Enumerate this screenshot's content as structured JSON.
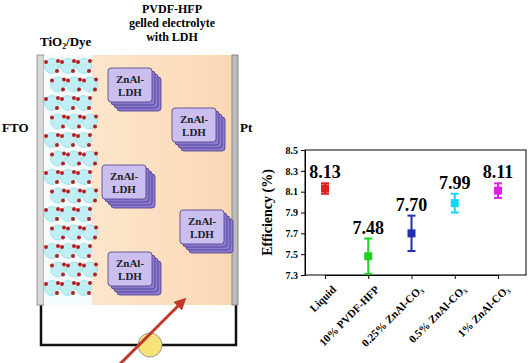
{
  "chart_data": {
    "type": "scatter",
    "categories": [
      "Liquid",
      "10% PVDF-HFP",
      "0.25% ZnAl-CO₃",
      "0.5% ZnAl-CO₃",
      "1% ZnAl-CO₃"
    ],
    "values": [
      8.13,
      7.48,
      7.7,
      7.99,
      8.11
    ],
    "value_labels": [
      "8.13",
      "7.48",
      "7.70",
      "7.99",
      "8.11"
    ],
    "errors": [
      0.05,
      0.17,
      0.17,
      0.09,
      0.07
    ],
    "colors": [
      "#e0201c",
      "#1fd01f",
      "#2030a8",
      "#10d8f0",
      "#e020e0"
    ],
    "marker": "square",
    "y_label": "Efficiency (%)",
    "ylim": [
      7.3,
      8.5
    ],
    "yticks": [
      7.3,
      7.5,
      7.7,
      7.9,
      8.1,
      8.3,
      8.5
    ],
    "data_labels": true,
    "grid": false
  },
  "diagram": {
    "fto": "FTO",
    "photoanode": "TiO₂/Dye",
    "electrolyte": [
      "PVDF-HFP",
      "gelled electrolyte",
      "with LDH"
    ],
    "counter": "Pt",
    "ldh_particles": [
      [
        "ZnAl-",
        "LDH"
      ],
      [
        "ZnAl-",
        "LDH"
      ],
      [
        "ZnAl-",
        "LDH"
      ],
      [
        "ZnAl-",
        "LDH"
      ],
      [
        "ZnAl-",
        "LDH"
      ]
    ]
  }
}
